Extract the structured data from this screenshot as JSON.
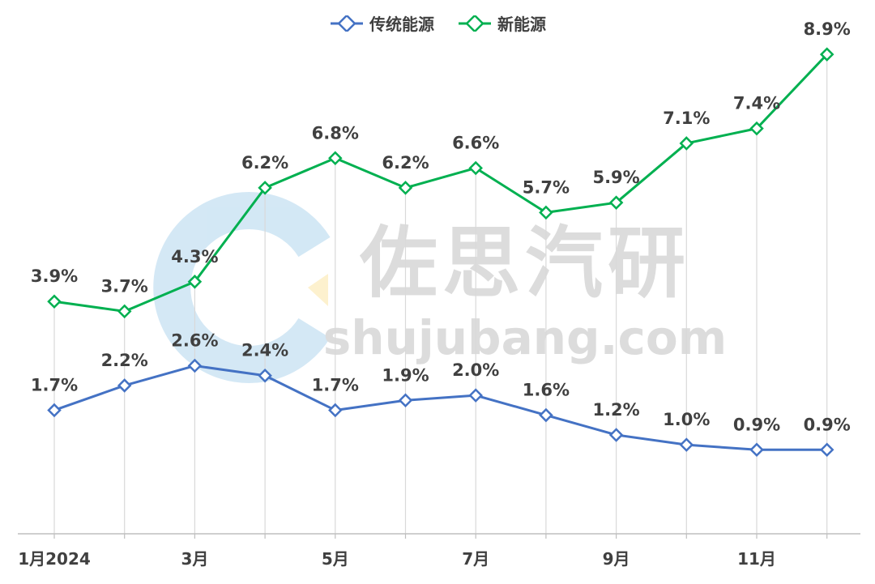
{
  "chart_data": {
    "type": "line",
    "title": "",
    "xlabel": "",
    "ylabel": "",
    "categories": [
      "1月2024",
      "",
      "3月",
      "",
      "5月",
      "",
      "7月",
      "",
      "9月",
      "",
      "11月",
      ""
    ],
    "series": [
      {
        "name": "传统能源",
        "color": "#4472c4",
        "values": [
          1.7,
          2.2,
          2.6,
          2.4,
          1.7,
          1.9,
          2.0,
          1.6,
          1.2,
          1.0,
          0.9,
          0.9
        ],
        "labels": [
          "1.7%",
          "2.2%",
          "2.6%",
          "2.4%",
          "1.7%",
          "1.9%",
          "2.0%",
          "1.6%",
          "1.2%",
          "1.0%",
          "0.9%",
          "0.9%"
        ]
      },
      {
        "name": "新能源",
        "color": "#00b050",
        "values": [
          3.9,
          3.7,
          4.3,
          6.2,
          6.8,
          6.2,
          6.6,
          5.7,
          5.9,
          7.1,
          7.4,
          8.9
        ],
        "labels": [
          "3.9%",
          "3.7%",
          "4.3%",
          "6.2%",
          "6.8%",
          "6.2%",
          "6.6%",
          "5.7%",
          "5.9%",
          "7.1%",
          "7.4%",
          "8.9%"
        ]
      }
    ],
    "ylim": [
      -0.8,
      10.0
    ],
    "grid": "vertical",
    "legend": "top-center",
    "marker": "diamond"
  },
  "watermark": {
    "name": "佐思汽研",
    "domain": "shujubang.com"
  }
}
